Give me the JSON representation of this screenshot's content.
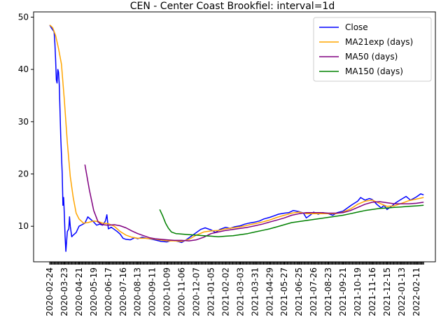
{
  "chart_data": {
    "type": "line",
    "title": "CEN - Center Coast Brookfiel: interval=1d",
    "xlabel": "",
    "ylabel": "",
    "x_ticks": [
      "2020-02-24",
      "2020-03-23",
      "2020-04-21",
      "2020-05-19",
      "2020-06-17",
      "2020-07-16",
      "2020-08-13",
      "2020-09-11",
      "2020-10-09",
      "2020-11-06",
      "2020-12-07",
      "2021-01-05",
      "2021-02-02",
      "2021-03-03",
      "2021-03-31",
      "2021-04-29",
      "2021-05-27",
      "2021-06-25",
      "2021-07-26",
      "2021-08-23",
      "2021-09-21",
      "2021-10-19",
      "2021-11-16",
      "2021-12-15",
      "2022-01-13",
      "2022-02-11"
    ],
    "y_ticks": [
      10,
      20,
      30,
      40,
      50
    ],
    "ylim": [
      3.2,
      51.0
    ],
    "xlim": [
      -1.1,
      26.3
    ],
    "grid": false,
    "legend_position": "upper right",
    "series": [
      {
        "name": "Close",
        "color": "#0000ff",
        "points": [
          [
            0.0,
            48.5
          ],
          [
            0.1,
            48.0
          ],
          [
            0.2,
            47.6
          ],
          [
            0.3,
            47.2
          ],
          [
            0.35,
            45.0
          ],
          [
            0.4,
            42.0
          ],
          [
            0.45,
            38.0
          ],
          [
            0.5,
            37.4
          ],
          [
            0.55,
            40.0
          ],
          [
            0.6,
            39.5
          ],
          [
            0.65,
            37.0
          ],
          [
            0.75,
            27.0
          ],
          [
            0.85,
            20.0
          ],
          [
            0.9,
            14.0
          ],
          [
            0.95,
            15.5
          ],
          [
            1.0,
            12.0
          ],
          [
            1.05,
            8.0
          ],
          [
            1.1,
            5.2
          ],
          [
            1.15,
            7.0
          ],
          [
            1.2,
            9.0
          ],
          [
            1.3,
            9.5
          ],
          [
            1.35,
            11.8
          ],
          [
            1.4,
            10.0
          ],
          [
            1.5,
            8.0
          ],
          [
            1.6,
            8.3
          ],
          [
            1.8,
            8.8
          ],
          [
            2.0,
            10.0
          ],
          [
            2.2,
            10.3
          ],
          [
            2.4,
            10.6
          ],
          [
            2.6,
            11.8
          ],
          [
            2.8,
            11.3
          ],
          [
            3.0,
            10.8
          ],
          [
            3.2,
            10.2
          ],
          [
            3.4,
            10.4
          ],
          [
            3.6,
            10.2
          ],
          [
            3.8,
            11.0
          ],
          [
            3.9,
            12.2
          ],
          [
            4.0,
            9.5
          ],
          [
            4.2,
            9.8
          ],
          [
            4.4,
            9.4
          ],
          [
            4.6,
            9.0
          ],
          [
            4.8,
            8.5
          ],
          [
            5.0,
            7.7
          ],
          [
            5.2,
            7.5
          ],
          [
            5.5,
            7.4
          ],
          [
            5.8,
            7.8
          ],
          [
            6.0,
            7.6
          ],
          [
            6.3,
            7.9
          ],
          [
            6.6,
            7.7
          ],
          [
            7.0,
            7.5
          ],
          [
            7.3,
            7.3
          ],
          [
            7.6,
            7.1
          ],
          [
            8.0,
            7.0
          ],
          [
            8.3,
            7.3
          ],
          [
            8.6,
            7.2
          ],
          [
            9.0,
            6.9
          ],
          [
            9.3,
            7.4
          ],
          [
            9.6,
            8.0
          ],
          [
            10.0,
            8.8
          ],
          [
            10.3,
            9.4
          ],
          [
            10.6,
            9.7
          ],
          [
            11.0,
            9.3
          ],
          [
            11.3,
            8.8
          ],
          [
            11.6,
            9.4
          ],
          [
            12.0,
            9.8
          ],
          [
            12.3,
            9.6
          ],
          [
            12.6,
            9.9
          ],
          [
            13.0,
            10.1
          ],
          [
            13.3,
            10.4
          ],
          [
            13.6,
            10.6
          ],
          [
            14.0,
            10.8
          ],
          [
            14.3,
            11.0
          ],
          [
            14.6,
            11.4
          ],
          [
            15.0,
            11.7
          ],
          [
            15.3,
            12.0
          ],
          [
            15.6,
            12.3
          ],
          [
            16.0,
            12.5
          ],
          [
            16.3,
            12.6
          ],
          [
            16.6,
            13.0
          ],
          [
            17.0,
            12.8
          ],
          [
            17.3,
            12.5
          ],
          [
            17.5,
            11.6
          ],
          [
            17.8,
            12.2
          ],
          [
            18.0,
            12.7
          ],
          [
            18.3,
            12.3
          ],
          [
            18.6,
            12.6
          ],
          [
            19.0,
            12.4
          ],
          [
            19.3,
            12.1
          ],
          [
            19.6,
            12.6
          ],
          [
            20.0,
            12.9
          ],
          [
            20.3,
            13.5
          ],
          [
            20.6,
            14.1
          ],
          [
            21.0,
            14.8
          ],
          [
            21.2,
            15.5
          ],
          [
            21.5,
            15.0
          ],
          [
            21.8,
            15.3
          ],
          [
            22.0,
            15.1
          ],
          [
            22.3,
            14.2
          ],
          [
            22.6,
            13.5
          ],
          [
            22.8,
            14.0
          ],
          [
            23.0,
            13.2
          ],
          [
            23.3,
            13.8
          ],
          [
            23.6,
            14.5
          ],
          [
            24.0,
            15.2
          ],
          [
            24.3,
            15.7
          ],
          [
            24.6,
            15.0
          ],
          [
            25.0,
            15.6
          ],
          [
            25.3,
            16.2
          ],
          [
            25.5,
            16.0
          ]
        ]
      },
      {
        "name": "MA21exp (days)",
        "color": "#ffa500",
        "points": [
          [
            0.0,
            48.5
          ],
          [
            0.2,
            48.0
          ],
          [
            0.4,
            46.5
          ],
          [
            0.6,
            44.0
          ],
          [
            0.8,
            41.0
          ],
          [
            1.0,
            34.0
          ],
          [
            1.2,
            26.0
          ],
          [
            1.4,
            19.5
          ],
          [
            1.6,
            15.5
          ],
          [
            1.8,
            12.5
          ],
          [
            2.0,
            11.4
          ],
          [
            2.3,
            10.6
          ],
          [
            2.6,
            10.7
          ],
          [
            3.0,
            11.0
          ],
          [
            3.3,
            10.9
          ],
          [
            3.6,
            10.6
          ],
          [
            4.0,
            10.5
          ],
          [
            4.4,
            10.0
          ],
          [
            4.8,
            9.0
          ],
          [
            5.2,
            8.3
          ],
          [
            5.6,
            7.9
          ],
          [
            6.0,
            7.7
          ],
          [
            6.5,
            7.7
          ],
          [
            7.0,
            7.6
          ],
          [
            7.5,
            7.4
          ],
          [
            8.0,
            7.2
          ],
          [
            8.5,
            7.2
          ],
          [
            9.0,
            7.1
          ],
          [
            9.5,
            7.5
          ],
          [
            10.0,
            8.3
          ],
          [
            10.5,
            8.9
          ],
          [
            11.0,
            9.1
          ],
          [
            11.5,
            9.2
          ],
          [
            12.0,
            9.5
          ],
          [
            12.5,
            9.7
          ],
          [
            13.0,
            9.9
          ],
          [
            13.5,
            10.2
          ],
          [
            14.0,
            10.5
          ],
          [
            14.5,
            10.8
          ],
          [
            15.0,
            11.2
          ],
          [
            15.5,
            11.7
          ],
          [
            16.0,
            12.1
          ],
          [
            16.5,
            12.5
          ],
          [
            17.0,
            12.7
          ],
          [
            17.5,
            12.4
          ],
          [
            18.0,
            12.4
          ],
          [
            18.5,
            12.4
          ],
          [
            19.0,
            12.4
          ],
          [
            19.5,
            12.4
          ],
          [
            20.0,
            12.7
          ],
          [
            20.5,
            13.3
          ],
          [
            21.0,
            14.2
          ],
          [
            21.5,
            14.8
          ],
          [
            22.0,
            15.0
          ],
          [
            22.5,
            14.4
          ],
          [
            23.0,
            13.8
          ],
          [
            23.5,
            13.9
          ],
          [
            24.0,
            14.4
          ],
          [
            24.5,
            14.9
          ],
          [
            25.0,
            15.2
          ],
          [
            25.5,
            15.5
          ]
        ]
      },
      {
        "name": "MA50 (days)",
        "color": "#800080",
        "points": [
          [
            2.4,
            21.8
          ],
          [
            2.7,
            17.0
          ],
          [
            3.0,
            13.0
          ],
          [
            3.3,
            10.8
          ],
          [
            3.6,
            10.3
          ],
          [
            4.0,
            10.2
          ],
          [
            4.4,
            10.3
          ],
          [
            4.8,
            10.1
          ],
          [
            5.2,
            9.7
          ],
          [
            5.6,
            9.1
          ],
          [
            6.0,
            8.6
          ],
          [
            6.4,
            8.2
          ],
          [
            6.8,
            7.8
          ],
          [
            7.2,
            7.6
          ],
          [
            7.6,
            7.5
          ],
          [
            8.0,
            7.4
          ],
          [
            8.5,
            7.3
          ],
          [
            9.0,
            7.3
          ],
          [
            9.5,
            7.2
          ],
          [
            10.0,
            7.4
          ],
          [
            10.5,
            7.9
          ],
          [
            11.0,
            8.6
          ],
          [
            11.5,
            8.9
          ],
          [
            12.0,
            9.2
          ],
          [
            12.5,
            9.4
          ],
          [
            13.0,
            9.6
          ],
          [
            13.5,
            9.8
          ],
          [
            14.0,
            10.1
          ],
          [
            14.5,
            10.4
          ],
          [
            15.0,
            10.8
          ],
          [
            15.5,
            11.2
          ],
          [
            16.0,
            11.6
          ],
          [
            16.5,
            12.1
          ],
          [
            17.0,
            12.4
          ],
          [
            17.5,
            12.6
          ],
          [
            18.0,
            12.6
          ],
          [
            18.5,
            12.6
          ],
          [
            19.0,
            12.5
          ],
          [
            19.5,
            12.5
          ],
          [
            20.0,
            12.6
          ],
          [
            20.5,
            13.0
          ],
          [
            21.0,
            13.6
          ],
          [
            21.5,
            14.2
          ],
          [
            22.0,
            14.6
          ],
          [
            22.5,
            14.7
          ],
          [
            23.0,
            14.5
          ],
          [
            23.5,
            14.3
          ],
          [
            24.0,
            14.3
          ],
          [
            24.5,
            14.3
          ],
          [
            25.0,
            14.4
          ],
          [
            25.5,
            14.6
          ]
        ]
      },
      {
        "name": "MA150 (days)",
        "color": "#008000",
        "points": [
          [
            7.5,
            13.2
          ],
          [
            7.7,
            12.0
          ],
          [
            7.9,
            10.6
          ],
          [
            8.1,
            9.6
          ],
          [
            8.3,
            8.9
          ],
          [
            8.6,
            8.6
          ],
          [
            9.0,
            8.5
          ],
          [
            9.5,
            8.4
          ],
          [
            10.0,
            8.3
          ],
          [
            10.5,
            8.2
          ],
          [
            11.0,
            8.1
          ],
          [
            11.5,
            8.0
          ],
          [
            12.0,
            8.1
          ],
          [
            12.5,
            8.2
          ],
          [
            13.0,
            8.4
          ],
          [
            13.5,
            8.6
          ],
          [
            14.0,
            8.9
          ],
          [
            14.5,
            9.2
          ],
          [
            15.0,
            9.5
          ],
          [
            15.5,
            9.9
          ],
          [
            16.0,
            10.3
          ],
          [
            16.5,
            10.7
          ],
          [
            17.0,
            10.9
          ],
          [
            17.5,
            11.1
          ],
          [
            18.0,
            11.3
          ],
          [
            18.5,
            11.5
          ],
          [
            19.0,
            11.7
          ],
          [
            19.5,
            11.9
          ],
          [
            20.0,
            12.1
          ],
          [
            20.5,
            12.4
          ],
          [
            21.0,
            12.7
          ],
          [
            21.5,
            13.0
          ],
          [
            22.0,
            13.2
          ],
          [
            22.5,
            13.4
          ],
          [
            23.0,
            13.5
          ],
          [
            23.5,
            13.6
          ],
          [
            24.0,
            13.7
          ],
          [
            24.5,
            13.8
          ],
          [
            25.0,
            13.9
          ],
          [
            25.5,
            14.0
          ]
        ]
      }
    ]
  }
}
